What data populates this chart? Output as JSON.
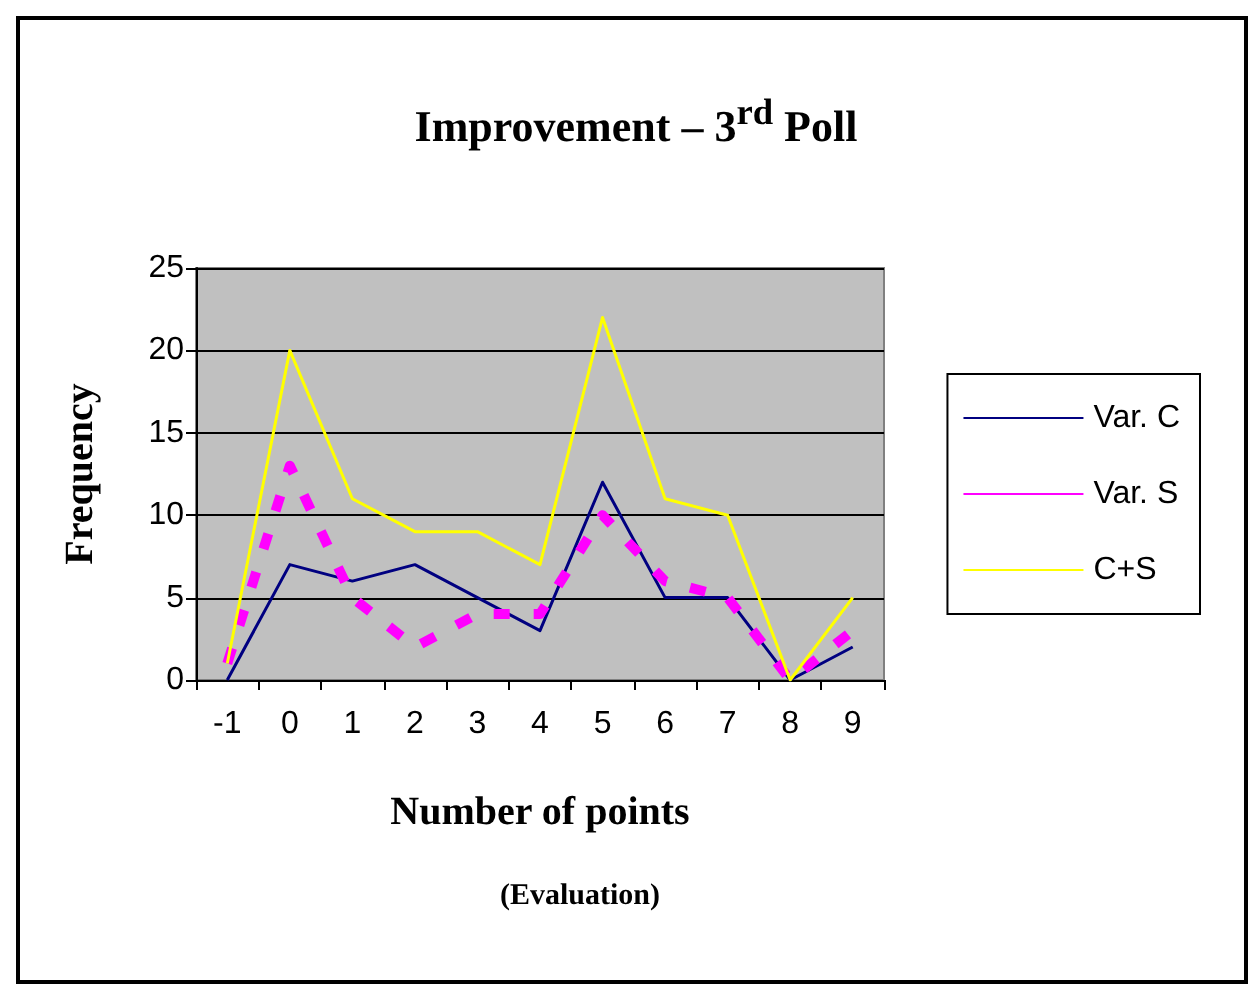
{
  "chart_data": {
    "type": "line",
    "title": "Improvement – 3$^{rd}$  Poll",
    "xlabel": "Number of points",
    "ylabel": "Frequency",
    "annotations": [
      "(Evaluation)"
    ],
    "categories": [
      "-1",
      "0",
      "1",
      "2",
      "3",
      "4",
      "5",
      "6",
      "7",
      "8",
      "9"
    ],
    "series": [
      {
        "name": "Var. C",
        "color": "#000080",
        "line_style": "solid",
        "values": [
          0,
          7,
          6,
          7,
          5,
          3,
          12,
          5,
          5,
          0,
          2
        ]
      },
      {
        "name": "Var. S",
        "color": "#ff00ff",
        "line_style": "dashed",
        "values": [
          1,
          13,
          5,
          2,
          4,
          4,
          10,
          6,
          5,
          0,
          3
        ]
      },
      {
        "name": "C+S",
        "color": "#ffff00",
        "line_style": "solid",
        "values": [
          1,
          20,
          11,
          9,
          9,
          7,
          22,
          11,
          10,
          0,
          5
        ]
      }
    ],
    "ylim": [
      0,
      25
    ],
    "yticks": [
      0,
      5,
      10,
      15,
      20,
      25
    ],
    "grid": "y",
    "legend": "right",
    "marker": "none"
  }
}
